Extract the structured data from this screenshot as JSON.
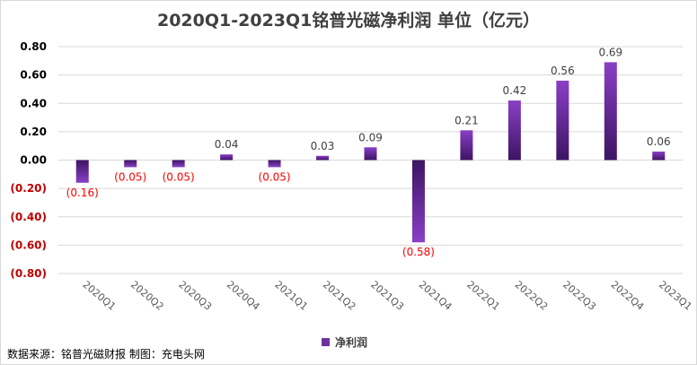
{
  "chart_data": {
    "type": "bar",
    "title": "2020Q1-2023Q1铭普光磁净利润 单位（亿元）",
    "categories": [
      "2020Q1",
      "2020Q2",
      "2020Q3",
      "2020Q4",
      "2021Q1",
      "2021Q2",
      "2021Q3",
      "2021Q4",
      "2022Q1",
      "2022Q2",
      "2022Q3",
      "2022Q4",
      "2023Q1"
    ],
    "series": [
      {
        "name": "净利润",
        "values": [
          -0.16,
          -0.05,
          -0.05,
          0.04,
          -0.05,
          0.03,
          0.09,
          -0.58,
          0.21,
          0.42,
          0.56,
          0.69,
          0.06
        ]
      }
    ],
    "data_labels": [
      "(0.16)",
      "(0.05)",
      "(0.05)",
      "0.04",
      "(0.05)",
      "0.03",
      "0.09",
      "(0.58)",
      "0.21",
      "0.42",
      "0.56",
      "0.69",
      "0.06"
    ],
    "yticks": [
      "0.80",
      "0.60",
      "0.40",
      "0.20",
      "0.00",
      "(0.20)",
      "(0.40)",
      "(0.60)",
      "(0.80)"
    ],
    "ylim": [
      -0.8,
      0.8
    ],
    "grid": true,
    "legend_position": "bottom",
    "colors": {
      "bar": "#7030a0",
      "bar_light": "#9b59c9",
      "negative_label": "#ff0000",
      "positive_label": "#404040",
      "negative_tick": "#c00000"
    }
  },
  "legend": {
    "label": "净利润"
  },
  "source": "数据来源：铭普光磁财报 制图：充电头网"
}
